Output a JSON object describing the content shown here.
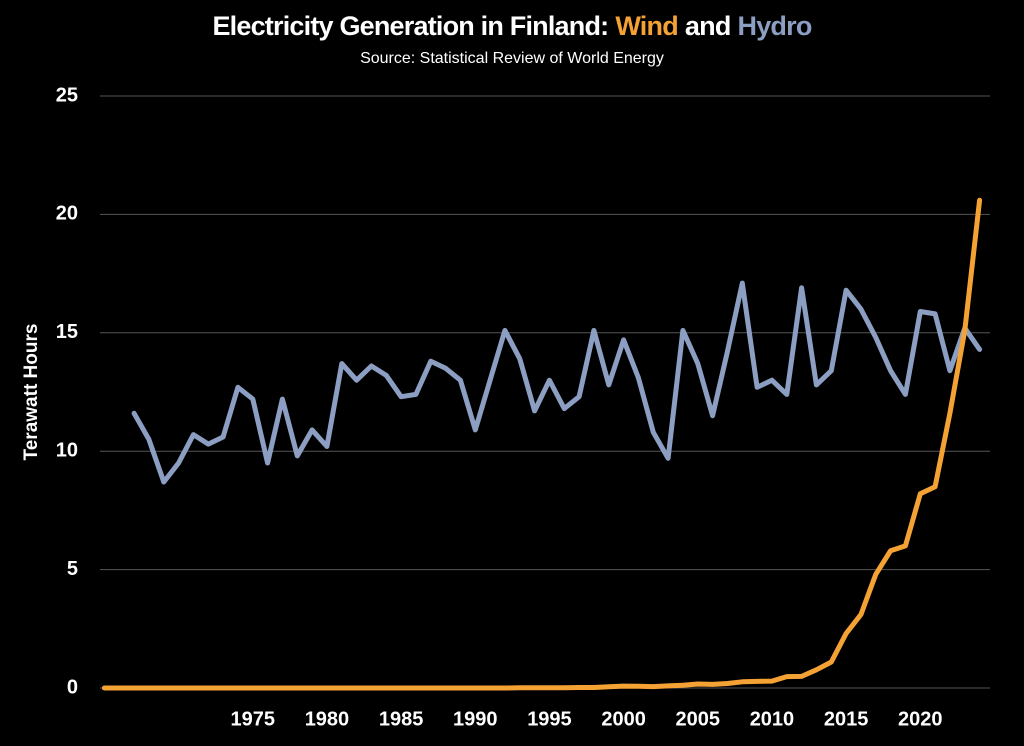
{
  "chart_data": {
    "type": "line",
    "title": "Electricity Generation in Finland:",
    "title_joiner": "and",
    "subtitle": "Source: Statistical Review of World Energy",
    "y_label": "Terawatt Hours",
    "x": [
      1965,
      1966,
      1967,
      1968,
      1969,
      1970,
      1971,
      1972,
      1973,
      1974,
      1975,
      1976,
      1977,
      1978,
      1979,
      1980,
      1981,
      1982,
      1983,
      1984,
      1985,
      1986,
      1987,
      1988,
      1989,
      1990,
      1991,
      1992,
      1993,
      1994,
      1995,
      1996,
      1997,
      1998,
      1999,
      2000,
      2001,
      2002,
      2003,
      2004,
      2005,
      2006,
      2007,
      2008,
      2009,
      2010,
      2011,
      2012,
      2013,
      2014,
      2015,
      2016,
      2017,
      2018,
      2019,
      2020,
      2021,
      2022,
      2023,
      2024
    ],
    "series": [
      {
        "name": "Wind",
        "color": "#f5a234",
        "values": [
          0,
          0,
          0,
          0,
          0,
          0,
          0,
          0,
          0,
          0,
          0,
          0,
          0,
          0,
          0,
          0,
          0,
          0,
          0,
          0,
          0,
          0,
          0,
          0,
          0,
          0,
          0,
          0,
          0.01,
          0.01,
          0.01,
          0.01,
          0.02,
          0.02,
          0.05,
          0.08,
          0.07,
          0.06,
          0.09,
          0.12,
          0.17,
          0.15,
          0.19,
          0.26,
          0.28,
          0.29,
          0.48,
          0.49,
          0.77,
          1.1,
          2.3,
          3.1,
          4.8,
          5.8,
          6.0,
          8.2,
          8.5,
          11.6,
          15.1,
          20.6
        ]
      },
      {
        "name": "Hydro",
        "color": "#8c9fc2",
        "values": [
          null,
          null,
          11.6,
          10.5,
          8.7,
          9.5,
          10.7,
          10.3,
          10.6,
          12.7,
          12.2,
          9.5,
          12.2,
          9.8,
          10.9,
          10.2,
          13.7,
          13.0,
          13.6,
          13.2,
          12.3,
          12.4,
          13.8,
          13.5,
          13.0,
          10.9,
          13.0,
          15.1,
          13.9,
          11.7,
          13.0,
          11.8,
          12.3,
          15.1,
          12.8,
          14.7,
          13.1,
          10.8,
          9.7,
          15.1,
          13.7,
          11.5,
          14.2,
          17.1,
          12.7,
          13.0,
          12.4,
          16.9,
          12.8,
          13.4,
          16.8,
          16.0,
          14.8,
          13.4,
          12.4,
          15.9,
          15.8,
          13.4,
          15.2,
          14.3
        ]
      }
    ],
    "xlim": [
      1964.7,
      2024.7
    ],
    "xticks": [
      1975,
      1980,
      1985,
      1990,
      1995,
      2000,
      2005,
      2010,
      2015,
      2020
    ],
    "ylim": [
      0,
      25
    ],
    "yticks": [
      0,
      5,
      10,
      15,
      20,
      25
    ],
    "grid": true
  }
}
